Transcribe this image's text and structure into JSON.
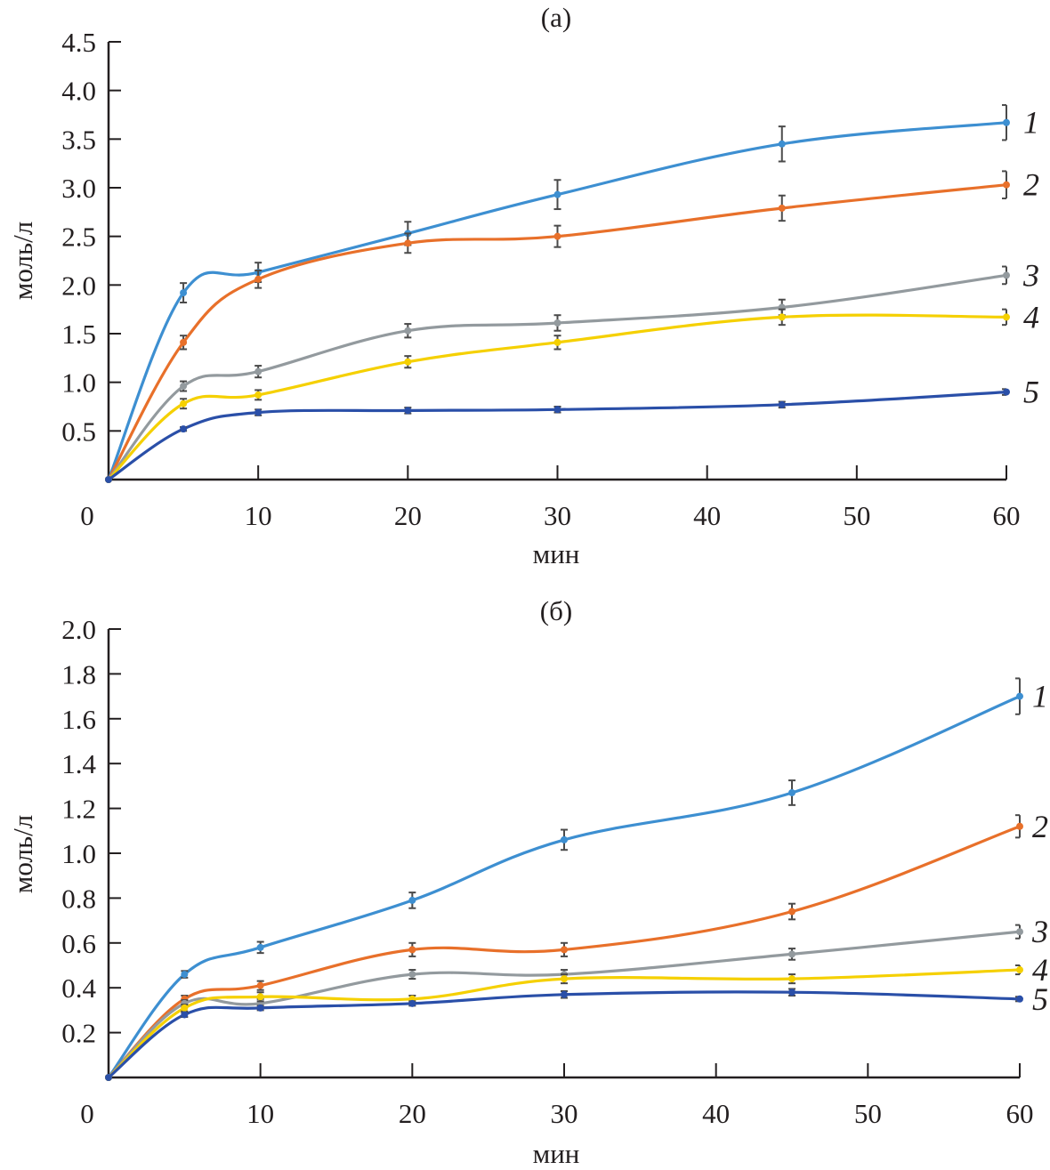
{
  "chart_data": [
    {
      "type": "line",
      "title": "(а)",
      "xlabel": "мин",
      "ylabel": "моль/л",
      "xlim": [
        0,
        60
      ],
      "ylim": [
        0,
        4.5
      ],
      "xticks": [
        0,
        10,
        20,
        30,
        40,
        50,
        60
      ],
      "xtick_labels": [
        "0",
        "10",
        "20",
        "30",
        "40",
        "50",
        "60"
      ],
      "yticks": [
        0.5,
        1.0,
        1.5,
        2.0,
        2.5,
        3.0,
        3.5,
        4.0,
        4.5
      ],
      "ytick_labels": [
        "0.5",
        "1.0",
        "1.5",
        "2.0",
        "2.5",
        "3.0",
        "3.5",
        "4.0",
        "4.5"
      ],
      "grid": false,
      "legend": "inline labels at right end of each curve",
      "x": [
        0,
        5,
        10,
        20,
        30,
        45,
        60
      ],
      "series": [
        {
          "name": "1",
          "color": "#3d8fd1",
          "values": [
            0,
            1.92,
            2.13,
            2.53,
            2.93,
            3.45,
            3.67
          ],
          "errors": [
            0,
            0.1,
            0.1,
            0.12,
            0.15,
            0.18,
            0.18
          ]
        },
        {
          "name": "2",
          "color": "#e8702a",
          "values": [
            0,
            1.41,
            2.06,
            2.43,
            2.5,
            2.79,
            3.03
          ],
          "errors": [
            0,
            0.07,
            0.09,
            0.1,
            0.11,
            0.13,
            0.14
          ]
        },
        {
          "name": "3",
          "color": "#939a9e",
          "values": [
            0,
            0.96,
            1.11,
            1.53,
            1.61,
            1.77,
            2.1
          ],
          "errors": [
            0,
            0.05,
            0.06,
            0.07,
            0.08,
            0.08,
            0.09
          ]
        },
        {
          "name": "4",
          "color": "#f5d000",
          "values": [
            0,
            0.78,
            0.87,
            1.21,
            1.41,
            1.67,
            1.67
          ],
          "errors": [
            0,
            0.05,
            0.05,
            0.06,
            0.07,
            0.08,
            0.08
          ]
        },
        {
          "name": "5",
          "color": "#2a4fa8",
          "values": [
            0,
            0.52,
            0.69,
            0.71,
            0.72,
            0.77,
            0.9
          ],
          "errors": [
            0,
            0.02,
            0.03,
            0.03,
            0.03,
            0.03,
            0.03
          ]
        }
      ]
    },
    {
      "type": "line",
      "title": "(б)",
      "xlabel": "мин",
      "ylabel": "моль/л",
      "xlim": [
        0,
        60
      ],
      "ylim": [
        0,
        2.0
      ],
      "xticks": [
        0,
        10,
        20,
        30,
        40,
        50,
        60
      ],
      "xtick_labels": [
        "0",
        "10",
        "20",
        "30",
        "40",
        "50",
        "60"
      ],
      "yticks": [
        0.2,
        0.4,
        0.6,
        0.8,
        1.0,
        1.2,
        1.4,
        1.6,
        1.8,
        2.0
      ],
      "ytick_labels": [
        "0.2",
        "0.4",
        "0.6",
        "0.8",
        "1.0",
        "1.2",
        "1.4",
        "1.6",
        "1.8",
        "2.0"
      ],
      "grid": false,
      "legend": "inline labels at right end of each curve",
      "x": [
        0,
        5,
        10,
        20,
        30,
        45,
        60
      ],
      "series": [
        {
          "name": "1",
          "color": "#3d8fd1",
          "values": [
            0,
            0.46,
            0.58,
            0.79,
            1.06,
            1.27,
            1.7
          ],
          "errors": [
            0,
            0.015,
            0.025,
            0.035,
            0.045,
            0.055,
            0.08
          ]
        },
        {
          "name": "2",
          "color": "#e8702a",
          "values": [
            0,
            0.35,
            0.41,
            0.57,
            0.57,
            0.74,
            1.12
          ],
          "errors": [
            0,
            0.015,
            0.02,
            0.03,
            0.03,
            0.035,
            0.05
          ]
        },
        {
          "name": "3",
          "color": "#939a9e",
          "values": [
            0,
            0.33,
            0.33,
            0.46,
            0.46,
            0.55,
            0.65
          ],
          "errors": [
            0,
            0.015,
            0.02,
            0.02,
            0.02,
            0.025,
            0.03
          ]
        },
        {
          "name": "4",
          "color": "#f5d000",
          "values": [
            0,
            0.31,
            0.36,
            0.35,
            0.44,
            0.44,
            0.48
          ],
          "errors": [
            0,
            0.015,
            0.02,
            0.015,
            0.02,
            0.02,
            0.02
          ]
        },
        {
          "name": "5",
          "color": "#2a4fa8",
          "values": [
            0,
            0.28,
            0.31,
            0.33,
            0.37,
            0.38,
            0.35
          ],
          "errors": [
            0,
            0.01,
            0.01,
            0.01,
            0.015,
            0.015,
            0.01
          ]
        }
      ]
    }
  ]
}
